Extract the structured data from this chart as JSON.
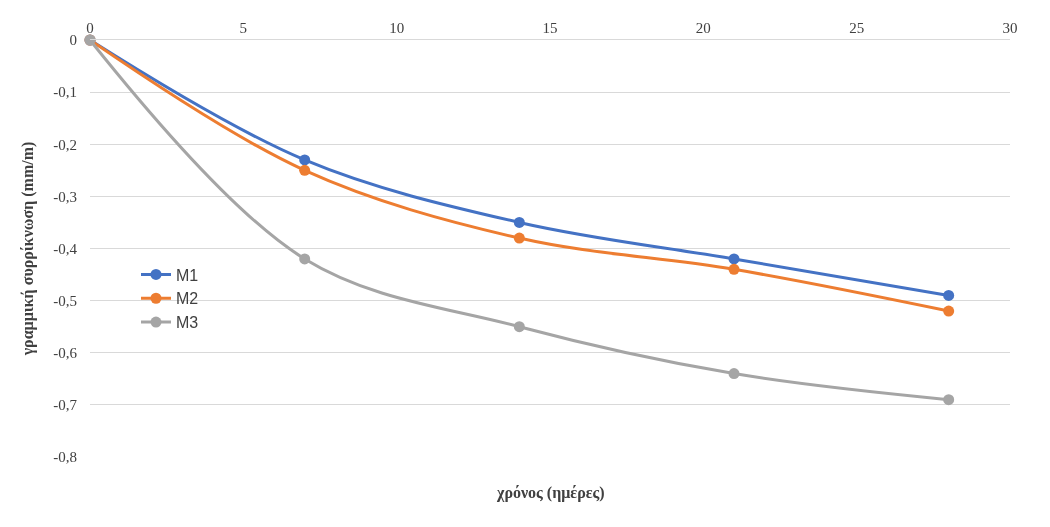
{
  "chart_data": {
    "type": "line",
    "xlabel": "χρόνος (ημέρες)",
    "ylabel": "γραμμική συρρίκνωση (mm/m)",
    "x": [
      0,
      7,
      14,
      21,
      28
    ],
    "series": [
      {
        "name": "M1",
        "color": "#4472c4",
        "values": [
          0,
          -0.23,
          -0.35,
          -0.42,
          -0.49
        ]
      },
      {
        "name": "M2",
        "color": "#ed7d31",
        "values": [
          0,
          -0.25,
          -0.38,
          -0.44,
          -0.52
        ]
      },
      {
        "name": "M3",
        "color": "#a5a5a5",
        "values": [
          0,
          -0.42,
          -0.55,
          -0.64,
          -0.69
        ]
      }
    ],
    "xlim": [
      0,
      30
    ],
    "xticks": [
      0,
      5,
      10,
      15,
      20,
      25,
      30
    ],
    "ylim": [
      -0.8,
      0
    ],
    "yticks": [
      0,
      {
        "value": -0.1,
        "label": "-0,1"
      },
      {
        "value": -0.2,
        "label": "-0,2"
      },
      {
        "value": -0.3,
        "label": "-0,3"
      },
      {
        "value": -0.4,
        "label": "-0,4"
      },
      {
        "value": -0.5,
        "label": "-0,5"
      },
      {
        "value": -0.6,
        "label": "-0,6"
      },
      {
        "value": -0.7,
        "label": "-0,7"
      },
      {
        "value": -0.8,
        "label": "-0,8"
      }
    ],
    "grid": "y",
    "legend": "left",
    "marker": "circle",
    "line_style": "solid"
  }
}
